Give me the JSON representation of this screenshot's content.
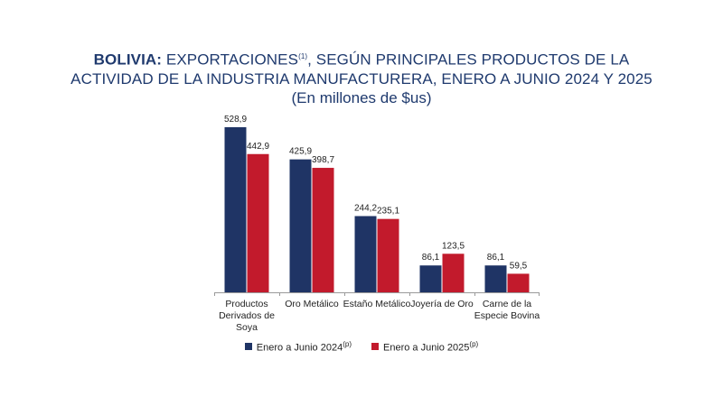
{
  "title": {
    "country": "BOLIVIA:",
    "part1": " EXPORTACIONES",
    "note": "(1)",
    "part2": ", SEGÚN PRINCIPALES PRODUCTOS DE LA",
    "line2": "ACTIVIDAD DE LA INDUSTRIA MANUFACTURERA, ENERO A JUNIO 2024 Y 2025",
    "subtitle": "(En millones de $us)"
  },
  "colors": {
    "series1": "#1f3465",
    "series2": "#c21a2c",
    "title": "#1f3a6e"
  },
  "legend": [
    {
      "label": "Enero a Junio 2024",
      "sup": "(p)"
    },
    {
      "label": "Enero a Junio  2025",
      "sup": "(p)"
    }
  ],
  "chart_data": {
    "type": "bar",
    "categories": [
      [
        "Productos",
        "Derivados de",
        "Soya"
      ],
      [
        "Oro Metálico"
      ],
      [
        "Estaño Metálico"
      ],
      [
        "Joyería de Oro"
      ],
      [
        "Carne de la",
        "Especie Bovina"
      ]
    ],
    "series": [
      {
        "name": "Enero a Junio 2024(p)",
        "values": [
          528.9,
          425.9,
          244.2,
          86.1,
          86.1
        ],
        "labels": [
          "528,9",
          "425,9",
          "244,2",
          "86,1",
          "86,1"
        ]
      },
      {
        "name": "Enero a Junio  2025(p)",
        "values": [
          442.9,
          398.7,
          235.1,
          123.5,
          59.5
        ],
        "labels": [
          "442,9",
          "398,7",
          "235,1",
          "123,5",
          "59,5"
        ]
      }
    ],
    "ylim": [
      0,
      528.9
    ],
    "grid": false,
    "legend_position": "bottom"
  }
}
